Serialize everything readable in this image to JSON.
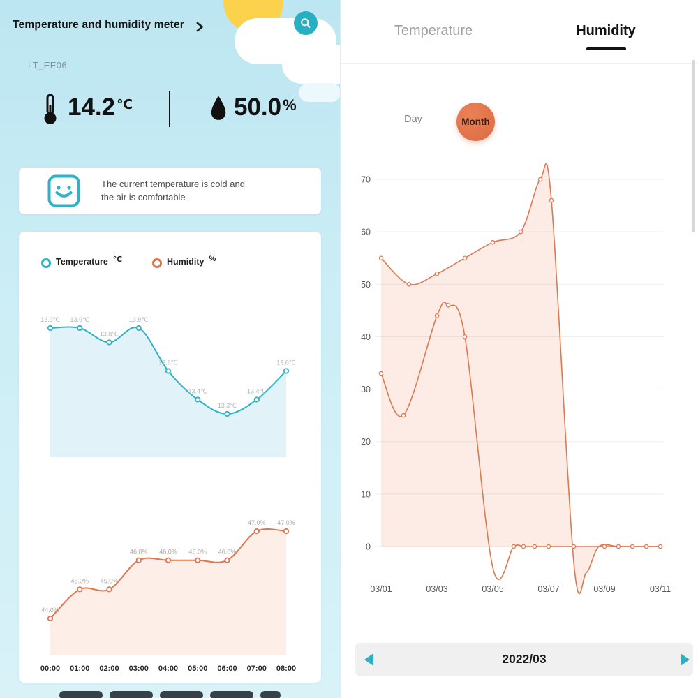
{
  "colors": {
    "accent_teal": "#2db3c4",
    "accent_orange": "#dd6a42",
    "background_blue": "#bce6f1"
  },
  "left": {
    "header_title": "Temperature and humidity meter",
    "device_id": "LT_EE06",
    "temperature_value": "14.2",
    "temperature_unit": "℃",
    "humidity_value": "50.0",
    "humidity_unit": "%",
    "status_message_line1": "The current temperature is cold and",
    "status_message_line2": "the air is comfortable",
    "legend": {
      "temperature_label": "Temperature",
      "temperature_unit": "℃",
      "humidity_label": "Humidity",
      "humidity_unit": "%"
    }
  },
  "right": {
    "tab_temperature": "Temperature",
    "tab_humidity": "Humidity",
    "toggle_day_label": "Day",
    "toggle_month_label": "Month",
    "date_nav_label": "2022/03"
  },
  "chart_data": [
    {
      "id": "left-temperature",
      "type": "line",
      "title": "Temperature ℃ (hourly)",
      "x": [
        "00:00",
        "01:00",
        "02:00",
        "03:00",
        "04:00",
        "05:00",
        "06:00",
        "07:00",
        "08:00"
      ],
      "values": [
        13.9,
        13.9,
        13.8,
        13.9,
        13.6,
        13.4,
        13.3,
        13.4,
        13.6
      ],
      "point_labels": [
        "13.9℃",
        "13.9℃",
        "13.8℃",
        "13.9℃",
        "13.6℃",
        "13.4℃",
        "13.3℃",
        "13.4℃",
        "13.6℃"
      ],
      "line_color": "#2db3c4",
      "fill_color": "#e1f3f9",
      "label_color": "#aeb7bc"
    },
    {
      "id": "left-humidity",
      "type": "line",
      "title": "Humidity % (hourly)",
      "x": [
        "00:00",
        "01:00",
        "02:00",
        "03:00",
        "04:00",
        "05:00",
        "06:00",
        "07:00",
        "08:00"
      ],
      "values": [
        44.0,
        45.0,
        45.0,
        46.0,
        46.0,
        46.0,
        46.0,
        47.0,
        47.0
      ],
      "point_labels": [
        "44.0%",
        "45.0%",
        "45.0%",
        "46.0%",
        "46.0%",
        "46.0%",
        "46.0%",
        "47.0%",
        "47.0%"
      ],
      "line_color": "#e0754e",
      "fill_color": "#fdeee7",
      "label_color": "#b3a79f"
    },
    {
      "id": "right-humidity-month",
      "type": "line",
      "title": "Humidity by month 2022/03",
      "yticks": [
        0,
        10,
        20,
        30,
        40,
        50,
        60,
        70
      ],
      "ylim": [
        -8,
        72
      ],
      "x_ticks": [
        {
          "day": 1,
          "label": "03/01"
        },
        {
          "day": 3,
          "label": "03/03"
        },
        {
          "day": 5,
          "label": "03/05"
        },
        {
          "day": 7,
          "label": "03/07"
        },
        {
          "day": 9,
          "label": "03/09"
        },
        {
          "day": 11,
          "label": "03/11"
        }
      ],
      "line_color": "#dd7950",
      "fill_color": "rgba(238,139,96,0.16)",
      "grid_color": "#ededed",
      "series": [
        {
          "name": "series-a",
          "fill": true,
          "points": [
            [
              1,
              55
            ],
            [
              2,
              50
            ],
            [
              3,
              52
            ],
            [
              4,
              55
            ],
            [
              5,
              58
            ],
            [
              6,
              60
            ],
            [
              6.7,
              70
            ],
            [
              7.1,
              66
            ],
            [
              7.9,
              -3
            ],
            [
              8.35,
              -5
            ],
            [
              8.8,
              0
            ],
            [
              9.5,
              0
            ],
            [
              10.2,
              0
            ],
            [
              11,
              0
            ]
          ],
          "markers": [
            [
              1,
              55
            ],
            [
              2,
              50
            ],
            [
              3,
              52
            ],
            [
              4,
              55
            ],
            [
              5,
              58
            ],
            [
              6,
              60
            ],
            [
              6.7,
              70
            ],
            [
              7.1,
              66
            ]
          ]
        },
        {
          "name": "series-b",
          "fill": false,
          "points": [
            [
              1,
              33
            ],
            [
              1.8,
              25
            ],
            [
              3,
              44
            ],
            [
              3.4,
              46
            ],
            [
              4,
              40
            ],
            [
              5,
              -4
            ],
            [
              5.75,
              0
            ],
            [
              6.1,
              0
            ],
            [
              6.5,
              0
            ],
            [
              7,
              0
            ],
            [
              7.5,
              0
            ],
            [
              7.9,
              0
            ],
            [
              8.4,
              0
            ],
            [
              9,
              0
            ],
            [
              9.5,
              0
            ],
            [
              10,
              0
            ],
            [
              10.5,
              0
            ],
            [
              11,
              0
            ]
          ],
          "markers": [
            [
              1,
              33
            ],
            [
              1.8,
              25
            ],
            [
              3,
              44
            ],
            [
              3.4,
              46
            ],
            [
              4,
              40
            ],
            [
              5.75,
              0
            ],
            [
              6.1,
              0
            ],
            [
              6.5,
              0
            ],
            [
              7,
              0
            ],
            [
              7.9,
              0
            ],
            [
              9,
              0
            ],
            [
              9.5,
              0
            ],
            [
              10,
              0
            ],
            [
              10.5,
              0
            ],
            [
              11,
              0
            ]
          ]
        }
      ]
    }
  ]
}
